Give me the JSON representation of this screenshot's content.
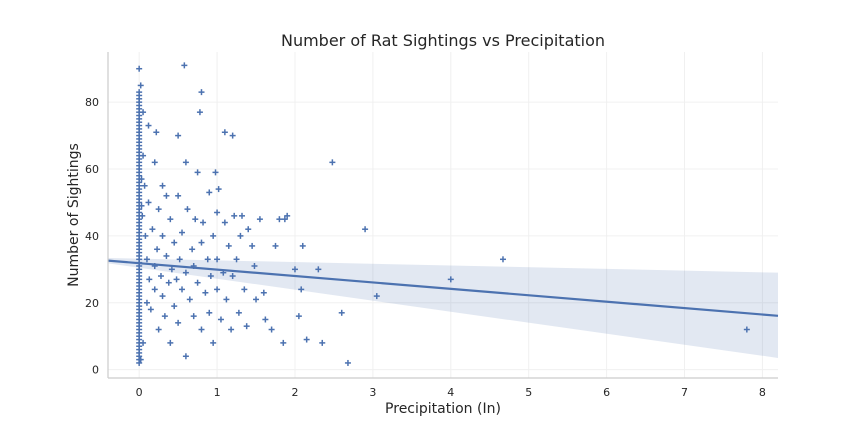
{
  "chart_data": {
    "type": "scatter",
    "title": "Number of Rat Sightings vs Precipitation",
    "xlabel": "Precipitation (In)",
    "ylabel": "Number of Sightings",
    "xlim": [
      -0.4,
      8.2
    ],
    "ylim": [
      -2.5,
      95
    ],
    "xticks": [
      0,
      1,
      2,
      3,
      4,
      5,
      6,
      7,
      8
    ],
    "yticks": [
      0,
      20,
      40,
      60,
      80
    ],
    "grid": true,
    "marker": "+",
    "colors": {
      "points": "#4c72b0",
      "line": "#4c72b0",
      "band": "#4c72b0"
    },
    "regression": {
      "x": [
        -0.4,
        8.2
      ],
      "y": [
        32.6,
        16.1
      ],
      "ci_upper": [
        33.4,
        29.0
      ],
      "ci_lower": [
        31.8,
        3.5
      ]
    },
    "points": [
      [
        0,
        2
      ],
      [
        0,
        3
      ],
      [
        0,
        4
      ],
      [
        0,
        5
      ],
      [
        0,
        6
      ],
      [
        0,
        7
      ],
      [
        0,
        8
      ],
      [
        0,
        9
      ],
      [
        0,
        10
      ],
      [
        0,
        11
      ],
      [
        0,
        12
      ],
      [
        0,
        13
      ],
      [
        0,
        14
      ],
      [
        0,
        15
      ],
      [
        0,
        16
      ],
      [
        0,
        17
      ],
      [
        0,
        18
      ],
      [
        0,
        19
      ],
      [
        0,
        20
      ],
      [
        0,
        21
      ],
      [
        0,
        22
      ],
      [
        0,
        23
      ],
      [
        0,
        24
      ],
      [
        0,
        25
      ],
      [
        0,
        26
      ],
      [
        0,
        27
      ],
      [
        0,
        28
      ],
      [
        0,
        29
      ],
      [
        0,
        30
      ],
      [
        0,
        31
      ],
      [
        0,
        32
      ],
      [
        0,
        33
      ],
      [
        0,
        34
      ],
      [
        0,
        35
      ],
      [
        0,
        36
      ],
      [
        0,
        37
      ],
      [
        0,
        38
      ],
      [
        0,
        39
      ],
      [
        0,
        40
      ],
      [
        0,
        41
      ],
      [
        0,
        42
      ],
      [
        0,
        43
      ],
      [
        0,
        44
      ],
      [
        0,
        45
      ],
      [
        0,
        46
      ],
      [
        0,
        47
      ],
      [
        0,
        48
      ],
      [
        0,
        49
      ],
      [
        0,
        50
      ],
      [
        0,
        51
      ],
      [
        0,
        52
      ],
      [
        0,
        53
      ],
      [
        0,
        54
      ],
      [
        0,
        55
      ],
      [
        0,
        56
      ],
      [
        0,
        57
      ],
      [
        0,
        58
      ],
      [
        0,
        59
      ],
      [
        0,
        60
      ],
      [
        0,
        61
      ],
      [
        0,
        62
      ],
      [
        0,
        63
      ],
      [
        0,
        64
      ],
      [
        0,
        65
      ],
      [
        0,
        66
      ],
      [
        0,
        67
      ],
      [
        0,
        68
      ],
      [
        0,
        69
      ],
      [
        0,
        70
      ],
      [
        0,
        71
      ],
      [
        0,
        72
      ],
      [
        0,
        73
      ],
      [
        0,
        74
      ],
      [
        0,
        75
      ],
      [
        0,
        76
      ],
      [
        0,
        77
      ],
      [
        0,
        78
      ],
      [
        0,
        79
      ],
      [
        0,
        80
      ],
      [
        0,
        81
      ],
      [
        0,
        82
      ],
      [
        0,
        83
      ],
      [
        0,
        90
      ],
      [
        0.02,
        85
      ],
      [
        0.02,
        3
      ],
      [
        0.03,
        57
      ],
      [
        0.03,
        49
      ],
      [
        0.04,
        46
      ],
      [
        0.05,
        8
      ],
      [
        0.05,
        77
      ],
      [
        0.05,
        64
      ],
      [
        0.07,
        55
      ],
      [
        0.08,
        40
      ],
      [
        0.1,
        33
      ],
      [
        0.1,
        20
      ],
      [
        0.12,
        73
      ],
      [
        0.12,
        50
      ],
      [
        0.13,
        27
      ],
      [
        0.15,
        18
      ],
      [
        0.17,
        42
      ],
      [
        0.2,
        62
      ],
      [
        0.2,
        24
      ],
      [
        0.2,
        31
      ],
      [
        0.22,
        71
      ],
      [
        0.23,
        36
      ],
      [
        0.25,
        48
      ],
      [
        0.25,
        12
      ],
      [
        0.28,
        28
      ],
      [
        0.3,
        55
      ],
      [
        0.3,
        22
      ],
      [
        0.3,
        40
      ],
      [
        0.33,
        16
      ],
      [
        0.35,
        52
      ],
      [
        0.35,
        34
      ],
      [
        0.38,
        26
      ],
      [
        0.4,
        45
      ],
      [
        0.4,
        8
      ],
      [
        0.42,
        30
      ],
      [
        0.45,
        38
      ],
      [
        0.45,
        19
      ],
      [
        0.48,
        27
      ],
      [
        0.5,
        52
      ],
      [
        0.5,
        70
      ],
      [
        0.5,
        14
      ],
      [
        0.52,
        33
      ],
      [
        0.55,
        41
      ],
      [
        0.55,
        24
      ],
      [
        0.58,
        91
      ],
      [
        0.6,
        62
      ],
      [
        0.6,
        29
      ],
      [
        0.6,
        4
      ],
      [
        0.62,
        48
      ],
      [
        0.65,
        21
      ],
      [
        0.68,
        36
      ],
      [
        0.7,
        31
      ],
      [
        0.7,
        16
      ],
      [
        0.72,
        45
      ],
      [
        0.75,
        59
      ],
      [
        0.75,
        26
      ],
      [
        0.78,
        77
      ],
      [
        0.8,
        83
      ],
      [
        0.8,
        38
      ],
      [
        0.8,
        12
      ],
      [
        0.82,
        44
      ],
      [
        0.85,
        23
      ],
      [
        0.88,
        33
      ],
      [
        0.9,
        53
      ],
      [
        0.9,
        17
      ],
      [
        0.92,
        28
      ],
      [
        0.95,
        40
      ],
      [
        0.95,
        8
      ],
      [
        0.98,
        59
      ],
      [
        1,
        24
      ],
      [
        1,
        47
      ],
      [
        1,
        33
      ],
      [
        1.02,
        54
      ],
      [
        1.05,
        15
      ],
      [
        1.08,
        29
      ],
      [
        1.1,
        71
      ],
      [
        1.1,
        44
      ],
      [
        1.12,
        21
      ],
      [
        1.15,
        37
      ],
      [
        1.18,
        12
      ],
      [
        1.2,
        70
      ],
      [
        1.2,
        28
      ],
      [
        1.22,
        46
      ],
      [
        1.25,
        33
      ],
      [
        1.28,
        17
      ],
      [
        1.3,
        40
      ],
      [
        1.32,
        46
      ],
      [
        1.35,
        24
      ],
      [
        1.38,
        13
      ],
      [
        1.4,
        42
      ],
      [
        1.45,
        37
      ],
      [
        1.48,
        31
      ],
      [
        1.5,
        21
      ],
      [
        1.55,
        45
      ],
      [
        1.6,
        23
      ],
      [
        1.62,
        15
      ],
      [
        1.7,
        12
      ],
      [
        1.75,
        37
      ],
      [
        1.8,
        45
      ],
      [
        1.85,
        8
      ],
      [
        1.87,
        45
      ],
      [
        1.9,
        46
      ],
      [
        2,
        30
      ],
      [
        2.05,
        16
      ],
      [
        2.08,
        24
      ],
      [
        2.1,
        37
      ],
      [
        2.15,
        9
      ],
      [
        2.3,
        30
      ],
      [
        2.35,
        8
      ],
      [
        2.48,
        62
      ],
      [
        2.6,
        17
      ],
      [
        2.68,
        2
      ],
      [
        2.9,
        42
      ],
      [
        3.05,
        22
      ],
      [
        4,
        27
      ],
      [
        4.67,
        33
      ],
      [
        7.8,
        12
      ]
    ]
  }
}
